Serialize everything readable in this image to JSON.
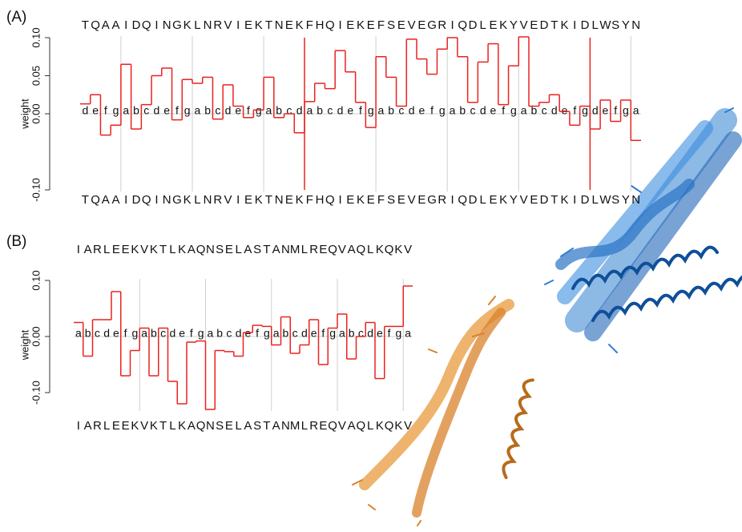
{
  "chart_data": [
    {
      "type": "step",
      "panel_label": "(A)",
      "y_label": "weight",
      "color": "#e8231f",
      "grid": "heptad-a",
      "sequence": [
        "T",
        "Q",
        "A",
        "A",
        "I",
        "D",
        "Q",
        "I",
        "N",
        "G",
        "K",
        "L",
        "N",
        "R",
        "V",
        "I",
        "E",
        "K",
        "T",
        "N",
        "E",
        "K",
        "F",
        "H",
        "Q",
        "I",
        "E",
        "K",
        "E",
        "F",
        "S",
        "E",
        "V",
        "E",
        "G",
        "R",
        "I",
        "Q",
        "D",
        "L",
        "E",
        "K",
        "Y",
        "V",
        "E",
        "D",
        "T",
        "K",
        "I",
        "D",
        "L",
        "W",
        "S",
        "Y",
        "N"
      ],
      "heptad": [
        "d",
        "e",
        "f",
        "g",
        "a",
        "b",
        "c",
        "d",
        "e",
        "f",
        "g",
        "a",
        "b",
        "c",
        "d",
        "e",
        "f",
        "g",
        "a",
        "b",
        "c",
        "d",
        "a",
        "b",
        "c",
        "d",
        "e",
        "f",
        "g",
        "a",
        "b",
        "c",
        "d",
        "e",
        "f",
        "g",
        "a",
        "b",
        "c",
        "d",
        "e",
        "f",
        "g",
        "a",
        "b",
        "c",
        "d",
        "e",
        "f",
        "g",
        "d",
        "e",
        "f",
        "g",
        "a"
      ],
      "values": [
        0.013,
        0.025,
        -0.028,
        -0.015,
        0.065,
        -0.02,
        0.012,
        0.05,
        0.06,
        -0.008,
        0.045,
        0.04,
        0.048,
        -0.007,
        0.038,
        0.01,
        -0.005,
        0.005,
        0.048,
        -0.005,
        0.0,
        -0.025,
        0.016,
        0.04,
        0.033,
        0.083,
        0.055,
        0.015,
        -0.018,
        0.075,
        0.048,
        0.01,
        0.098,
        0.072,
        0.052,
        0.085,
        0.1,
        0.075,
        0.015,
        0.068,
        0.092,
        0.012,
        0.063,
        0.101,
        0.01,
        0.015,
        0.025,
        0.003,
        -0.015,
        0.01,
        -0.02,
        0.018,
        -0.01,
        0.018,
        -0.035
      ],
      "breaks": [
        22,
        50
      ],
      "ylim": [
        -0.1,
        0.1
      ],
      "yticks": [
        {
          "value": -0.1,
          "label": "-0.10"
        },
        {
          "value": 0,
          "label": "0.00"
        },
        {
          "value": 0.05,
          "label": "0.05"
        },
        {
          "value": 0.1,
          "label": "0.10"
        }
      ]
    },
    {
      "type": "step",
      "panel_label": "(B)",
      "y_label": "weight",
      "color": "#e8231f",
      "grid": "heptad-a",
      "sequence": [
        "I",
        "A",
        "R",
        "L",
        "E",
        "E",
        "K",
        "V",
        "K",
        "T",
        "L",
        "K",
        "A",
        "Q",
        "N",
        "S",
        "E",
        "L",
        "A",
        "S",
        "T",
        "A",
        "N",
        "M",
        "L",
        "R",
        "E",
        "Q",
        "V",
        "A",
        "Q",
        "L",
        "K",
        "Q",
        "K",
        "V"
      ],
      "heptad": [
        "a",
        "b",
        "c",
        "d",
        "e",
        "f",
        "g",
        "a",
        "b",
        "c",
        "d",
        "e",
        "f",
        "g",
        "a",
        "b",
        "c",
        "d",
        "e",
        "f",
        "g",
        "a",
        "b",
        "c",
        "d",
        "e",
        "f",
        "g",
        "a",
        "b",
        "c",
        "d",
        "e",
        "f",
        "g",
        "a"
      ],
      "values": [
        0.025,
        -0.035,
        0.03,
        0.03,
        0.08,
        -0.07,
        -0.025,
        0.015,
        -0.07,
        0.015,
        -0.08,
        -0.12,
        -0.01,
        -0.008,
        -0.13,
        -0.025,
        -0.027,
        -0.035,
        0.007,
        0.02,
        0.018,
        -0.015,
        0.035,
        -0.03,
        -0.015,
        0.03,
        -0.05,
        0.015,
        0.04,
        -0.04,
        0.0,
        0.025,
        -0.075,
        0.018,
        0.018,
        0.09
      ],
      "ylim": [
        -0.13,
        0.1
      ],
      "yticks": [
        {
          "value": -0.1,
          "label": "-0.10"
        },
        {
          "value": 0,
          "label": "0.00"
        },
        {
          "value": 0.1,
          "label": "0.10"
        }
      ]
    }
  ]
}
